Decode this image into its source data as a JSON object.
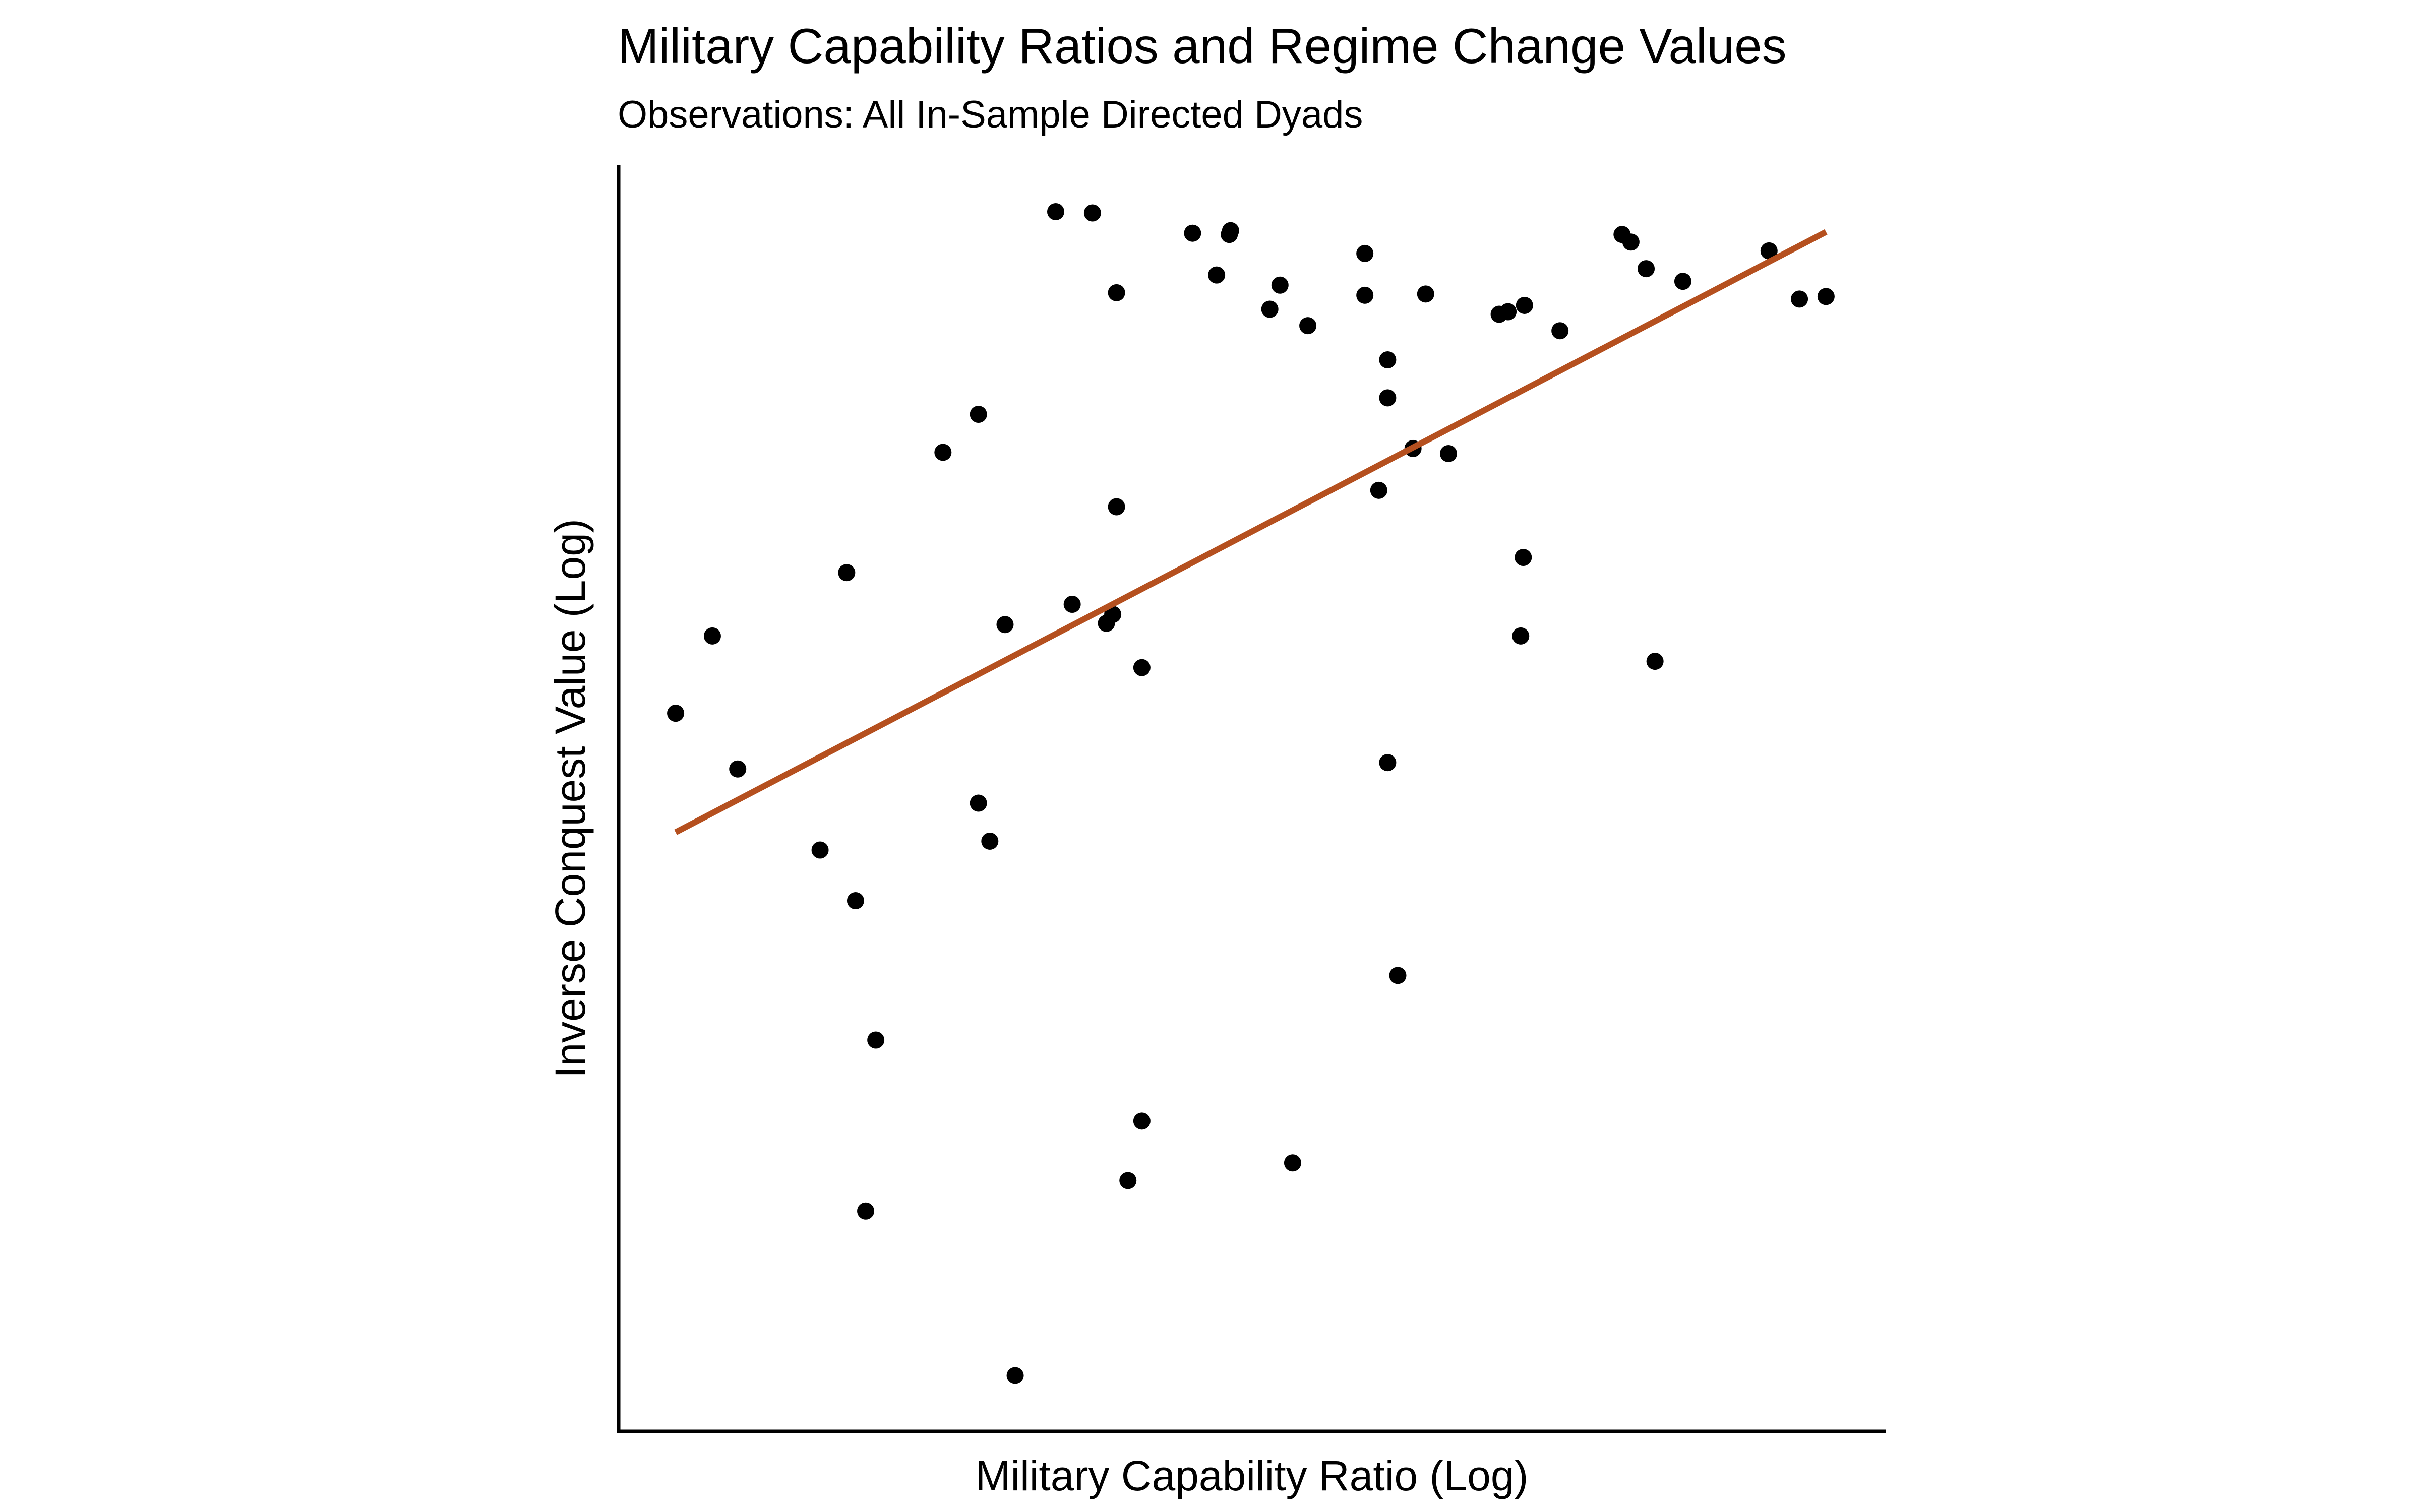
{
  "chart_data": {
    "type": "scatter",
    "title": "Military Capability Ratios and Regime Change Values",
    "subtitle": "Observations: All In-Sample Directed Dyads",
    "xlabel": "Military Capability Ratio (Log)",
    "ylabel": "Inverse Conquest Value (Log)",
    "xlim": [
      0,
      100
    ],
    "ylim": [
      0,
      100
    ],
    "grid": false,
    "legend": "none",
    "colors": {
      "points": "#000000",
      "fit_line": "#B5501F",
      "axes": "#000000"
    },
    "points": [
      {
        "x": 4.5,
        "y": 56.7
      },
      {
        "x": 7.4,
        "y": 62.8
      },
      {
        "x": 9.4,
        "y": 52.3
      },
      {
        "x": 15.9,
        "y": 45.9
      },
      {
        "x": 18.0,
        "y": 67.8
      },
      {
        "x": 18.7,
        "y": 41.9
      },
      {
        "x": 19.5,
        "y": 17.4
      },
      {
        "x": 20.3,
        "y": 30.9
      },
      {
        "x": 25.6,
        "y": 77.3
      },
      {
        "x": 28.4,
        "y": 80.3
      },
      {
        "x": 28.4,
        "y": 49.6
      },
      {
        "x": 29.3,
        "y": 46.6
      },
      {
        "x": 30.5,
        "y": 63.7
      },
      {
        "x": 31.3,
        "y": 4.4
      },
      {
        "x": 34.5,
        "y": 96.3
      },
      {
        "x": 35.8,
        "y": 65.3
      },
      {
        "x": 37.4,
        "y": 96.2
      },
      {
        "x": 38.5,
        "y": 63.8
      },
      {
        "x": 39.0,
        "y": 64.5
      },
      {
        "x": 39.3,
        "y": 73.0
      },
      {
        "x": 39.3,
        "y": 89.9
      },
      {
        "x": 40.2,
        "y": 19.8
      },
      {
        "x": 41.3,
        "y": 60.3
      },
      {
        "x": 41.3,
        "y": 24.5
      },
      {
        "x": 45.3,
        "y": 94.6
      },
      {
        "x": 47.2,
        "y": 91.3
      },
      {
        "x": 48.2,
        "y": 94.5
      },
      {
        "x": 48.3,
        "y": 94.8
      },
      {
        "x": 51.4,
        "y": 88.6
      },
      {
        "x": 52.2,
        "y": 90.5
      },
      {
        "x": 53.2,
        "y": 21.2
      },
      {
        "x": 54.4,
        "y": 87.3
      },
      {
        "x": 58.9,
        "y": 93.0
      },
      {
        "x": 58.9,
        "y": 89.7
      },
      {
        "x": 60.0,
        "y": 74.3
      },
      {
        "x": 60.7,
        "y": 84.6
      },
      {
        "x": 60.7,
        "y": 81.6
      },
      {
        "x": 60.7,
        "y": 52.8
      },
      {
        "x": 61.5,
        "y": 36.0
      },
      {
        "x": 62.7,
        "y": 77.6
      },
      {
        "x": 63.7,
        "y": 89.8
      },
      {
        "x": 65.5,
        "y": 77.2
      },
      {
        "x": 69.5,
        "y": 88.2
      },
      {
        "x": 70.2,
        "y": 88.4
      },
      {
        "x": 71.2,
        "y": 62.8
      },
      {
        "x": 71.4,
        "y": 69.0
      },
      {
        "x": 71.5,
        "y": 88.9
      },
      {
        "x": 74.3,
        "y": 86.9
      },
      {
        "x": 79.2,
        "y": 94.5
      },
      {
        "x": 79.9,
        "y": 93.9
      },
      {
        "x": 81.1,
        "y": 91.8
      },
      {
        "x": 81.8,
        "y": 60.8
      },
      {
        "x": 84.0,
        "y": 90.8
      },
      {
        "x": 90.8,
        "y": 93.2
      },
      {
        "x": 93.2,
        "y": 89.4
      },
      {
        "x": 95.3,
        "y": 89.6
      }
    ],
    "fit_line": {
      "x": [
        4.5,
        95.3
      ],
      "y": [
        47.3,
        94.7
      ]
    }
  }
}
